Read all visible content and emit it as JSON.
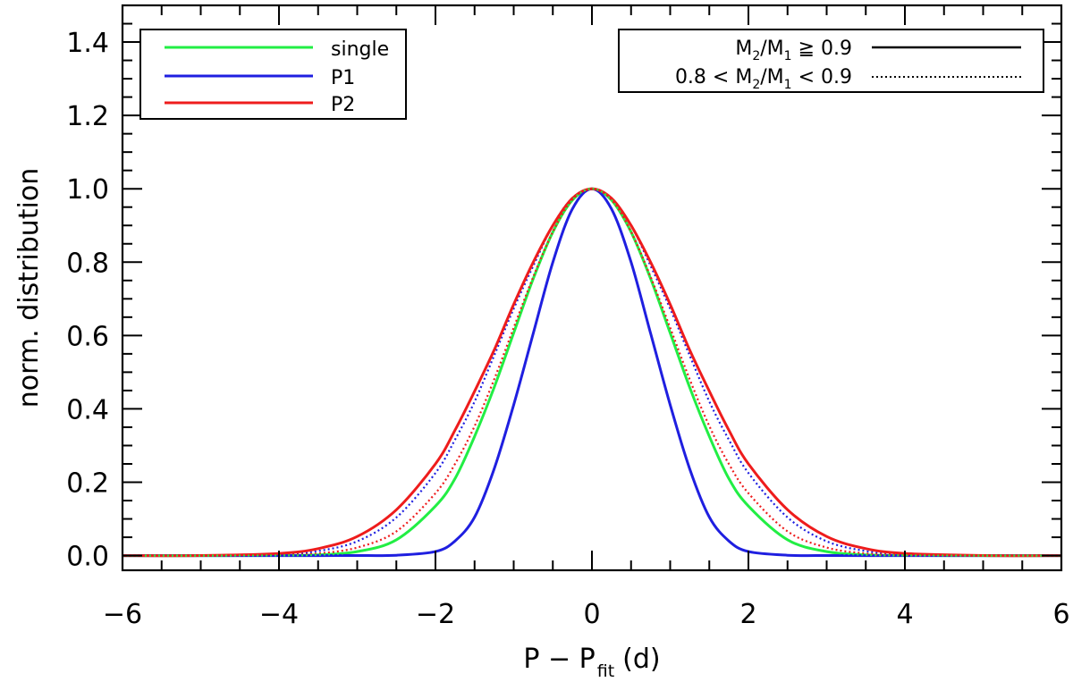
{
  "chart_data": {
    "type": "line",
    "xlabel": {
      "main": "P − P",
      "sub": "fit",
      "unit": "(d)"
    },
    "ylabel": "norm. distribution",
    "xlim": [
      -6,
      6
    ],
    "ylim": [
      -0.04,
      1.5
    ],
    "x_ticks": [
      -6,
      -4,
      -2,
      0,
      2,
      4,
      6
    ],
    "x_tick_labels": [
      "−6",
      "−4",
      "−2",
      "0",
      "2",
      "4",
      "6"
    ],
    "y_ticks": [
      0.0,
      0.2,
      0.4,
      0.6,
      0.8,
      1.0,
      1.2,
      1.4
    ],
    "y_tick_labels": [
      "0.0",
      "0.2",
      "0.4",
      "0.6",
      "0.8",
      "1.0",
      "1.2",
      "1.4"
    ],
    "grid": false,
    "legend_colors": {
      "position": "top-left",
      "entries": [
        {
          "label": "single",
          "color": "#22ee44"
        },
        {
          "label": "P1",
          "color": "#1f1fe0"
        },
        {
          "label": "P2",
          "color": "#ee1c1c"
        }
      ]
    },
    "legend_styles": {
      "position": "top-right",
      "entries": [
        {
          "label": {
            "a": "M",
            "a_sub": "2",
            "slash": "/M",
            "b_sub": "1",
            "rest": " ≧ 0.9"
          },
          "style": "solid"
        },
        {
          "label": {
            "pre": "0.8 < M",
            "a_sub": "2",
            "slash": "/M",
            "b_sub": "1",
            "rest": " < 0.9"
          },
          "style": "dotted"
        }
      ]
    },
    "x": [
      -6,
      -5,
      -4,
      -3.5,
      -3,
      -2.5,
      -2,
      -1.75,
      -1.5,
      -1.25,
      -1,
      -0.75,
      -0.5,
      -0.25,
      0,
      0.25,
      0.5,
      0.75,
      1,
      1.25,
      1.5,
      1.75,
      2,
      2.5,
      3,
      3.5,
      4,
      5,
      6
    ],
    "series": [
      {
        "name": "single",
        "color": "#22ee44",
        "style": "solid",
        "values": [
          0,
          0,
          0.0004,
          0.0021,
          0.011,
          0.043,
          0.135,
          0.21,
          0.325,
          0.458,
          0.607,
          0.755,
          0.882,
          0.969,
          1.0,
          0.969,
          0.882,
          0.755,
          0.607,
          0.458,
          0.325,
          0.21,
          0.135,
          0.043,
          0.011,
          0.0021,
          0.0004,
          0,
          0
        ]
      },
      {
        "name": "single",
        "color": "#22ee44",
        "style": "dotted",
        "values": [
          0,
          0,
          0.0004,
          0.0021,
          0.011,
          0.043,
          0.135,
          0.21,
          0.325,
          0.458,
          0.607,
          0.755,
          0.882,
          0.969,
          1.0,
          0.969,
          0.882,
          0.755,
          0.607,
          0.458,
          0.325,
          0.21,
          0.135,
          0.043,
          0.011,
          0.0021,
          0.0004,
          0,
          0
        ]
      },
      {
        "name": "P1",
        "color": "#1f1fe0",
        "style": "solid",
        "values": [
          0,
          0,
          0,
          0,
          0.0001,
          0.001,
          0.011,
          0.04,
          0.105,
          0.236,
          0.411,
          0.606,
          0.8,
          0.945,
          1.0,
          0.945,
          0.8,
          0.606,
          0.411,
          0.236,
          0.105,
          0.04,
          0.011,
          0.001,
          0.0001,
          0,
          0,
          0,
          0
        ]
      },
      {
        "name": "P1",
        "color": "#1f1fe0",
        "style": "dotted",
        "values": [
          0,
          0.0001,
          0.0031,
          0.0125,
          0.039,
          0.104,
          0.225,
          0.316,
          0.42,
          0.545,
          0.673,
          0.79,
          0.9,
          0.975,
          1.0,
          0.975,
          0.9,
          0.79,
          0.673,
          0.545,
          0.42,
          0.316,
          0.225,
          0.104,
          0.039,
          0.0125,
          0.0031,
          0.0001,
          0
        ]
      },
      {
        "name": "P2",
        "color": "#ee1c1c",
        "style": "solid",
        "values": [
          0,
          0.0003,
          0.0058,
          0.019,
          0.052,
          0.125,
          0.25,
          0.342,
          0.448,
          0.56,
          0.685,
          0.8,
          0.9,
          0.974,
          1.0,
          0.974,
          0.9,
          0.8,
          0.685,
          0.56,
          0.448,
          0.342,
          0.25,
          0.125,
          0.052,
          0.019,
          0.0058,
          0.0003,
          0
        ]
      },
      {
        "name": "P2",
        "color": "#ee1c1c",
        "style": "dotted",
        "values": [
          0,
          0,
          0.0012,
          0.0058,
          0.022,
          0.066,
          0.17,
          0.25,
          0.353,
          0.48,
          0.621,
          0.76,
          0.883,
          0.97,
          1.0,
          0.97,
          0.883,
          0.76,
          0.621,
          0.48,
          0.353,
          0.25,
          0.17,
          0.066,
          0.022,
          0.0058,
          0.0012,
          0,
          0
        ]
      }
    ]
  }
}
